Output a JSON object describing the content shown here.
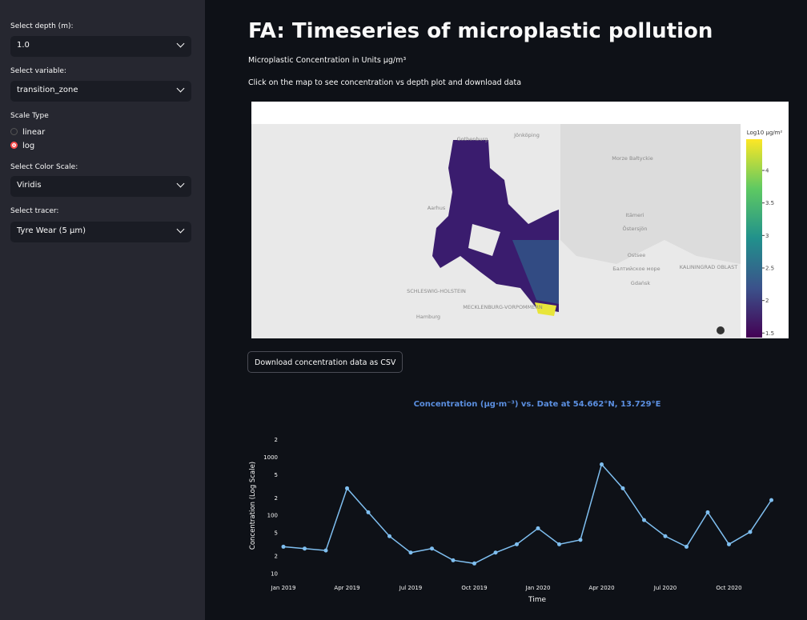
{
  "sidebar": [
    {
      "label": "Select depth (m):",
      "value": "1.0"
    },
    {
      "label": "Select variable:",
      "value": "transition_zone"
    },
    {
      "label": "Scale Type",
      "options": [
        "linear",
        "log"
      ],
      "selected": 1
    },
    {
      "label": "Select Color Scale:",
      "value": "Viridis"
    },
    {
      "label": "Select tracer:",
      "value": "Tyre Wear (5 µm)"
    }
  ],
  "main": {
    "title": "FA: Timeseries of microplastic pollution",
    "caption": "Microplastic Concentration in Units μg/m³",
    "instruction": "Click on the map to see concentration vs depth plot and download data",
    "button": "Download concentration data as CSV"
  },
  "map": {
    "labels": [
      "Morze Bałtyckie",
      "Itämeri",
      "Östersjön",
      "Ostsee",
      "Балтийское море",
      "SCHLESWIG-HOLSTEIN",
      "MECKLENBURG-VORPOMMERN",
      "KALININGRAD OBLAST",
      "Hamburg",
      "Gdańsk",
      "Aarhus",
      "Jönköping",
      "Gothenburg"
    ],
    "colorbar": {
      "title": "Log10 μg/m²",
      "ticks": [
        1.5,
        2,
        2.5,
        3,
        3.5,
        4
      ],
      "lim": [
        1.43,
        4.48
      ]
    }
  },
  "chart_data": {
    "type": "line",
    "title": "Concentration (μg·m⁻³) vs. Date at 54.662°N, 13.729°E",
    "x_label": "Time",
    "y_label": "Concentration (Log Scale)",
    "x": [
      "2019-01",
      "2019-02",
      "2019-03",
      "2019-04",
      "2019-05",
      "2019-06",
      "2019-07",
      "2019-08",
      "2019-09",
      "2019-10",
      "2019-11",
      "2019-12",
      "2020-01",
      "2020-02",
      "2020-03",
      "2020-04",
      "2020-05",
      "2020-06",
      "2020-07",
      "2020-08",
      "2020-09",
      "2020-10",
      "2020-11",
      "2020-12"
    ],
    "values": [
      29,
      27,
      25,
      292,
      113,
      44,
      23,
      27,
      17,
      15,
      23,
      32,
      60,
      32,
      38,
      750,
      292,
      83,
      44,
      29,
      113,
      32,
      52,
      183
    ],
    "color": "#7fbff0",
    "log_y": true,
    "grid": false,
    "xlim": [
      "2019-01",
      "2021-01"
    ],
    "xticks": [
      {
        "value": "2019-01",
        "label": "Jan 2019"
      },
      {
        "value": "2019-04",
        "label": "Apr 2019"
      },
      {
        "value": "2019-07",
        "label": "Jul 2019"
      },
      {
        "value": "2019-10",
        "label": "Oct 2019"
      },
      {
        "value": "2020-01",
        "label": "Jan 2020"
      },
      {
        "value": "2020-04",
        "label": "Apr 2020"
      },
      {
        "value": "2020-07",
        "label": "Jul 2020"
      },
      {
        "value": "2020-10",
        "label": "Oct 2020"
      }
    ],
    "ylim": [
      7.8,
      2300
    ],
    "yticks": [
      10,
      {
        "value": 20,
        "label": "2"
      },
      {
        "value": 50,
        "label": "5"
      },
      100,
      {
        "value": 200,
        "label": "2"
      },
      {
        "value": 500,
        "label": "5"
      },
      1000,
      {
        "value": 2000,
        "label": "2"
      }
    ]
  }
}
